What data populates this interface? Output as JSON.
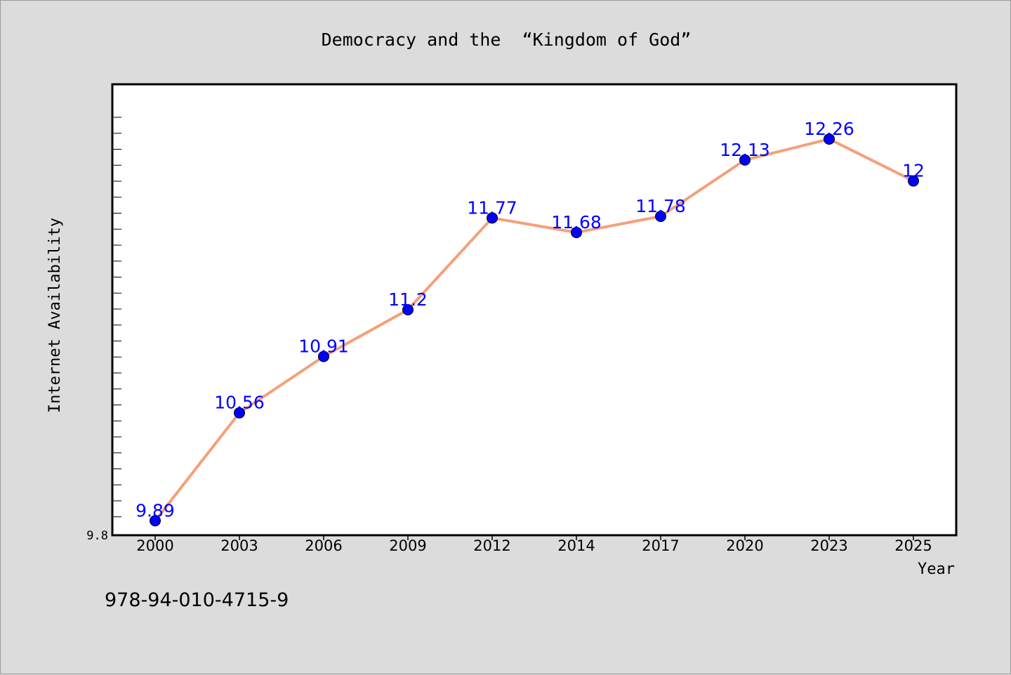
{
  "chart_data": {
    "type": "line",
    "title": "Democracy and the  “Kingdom of God”",
    "xlabel": "Year",
    "ylabel": "Internet Availability",
    "categories": [
      "2000",
      "2003",
      "2006",
      "2009",
      "2012",
      "2014",
      "2017",
      "2020",
      "2023",
      "2025"
    ],
    "series": [
      {
        "values": [
          9.89,
          10.56,
          10.91,
          11.2,
          11.77,
          11.68,
          11.78,
          12.13,
          12.26,
          12
        ]
      }
    ],
    "data_labels": [
      "9.89",
      "10.56",
      "10.91",
      "11.2",
      "11.77",
      "11.68",
      "11.78",
      "12.13",
      "12.26",
      "12"
    ],
    "yticks": [
      "9.8"
    ],
    "ylim": [
      9.8,
      12.6
    ],
    "grid": false,
    "legend": "none",
    "colors": {
      "line": "#f4a07a",
      "marker": "#0000ff",
      "data_label": "#0000ff",
      "background": "#dcdcdc",
      "plot_background": "#ffffff"
    }
  },
  "footer": {
    "isbn": "978-94-010-4715-9"
  }
}
